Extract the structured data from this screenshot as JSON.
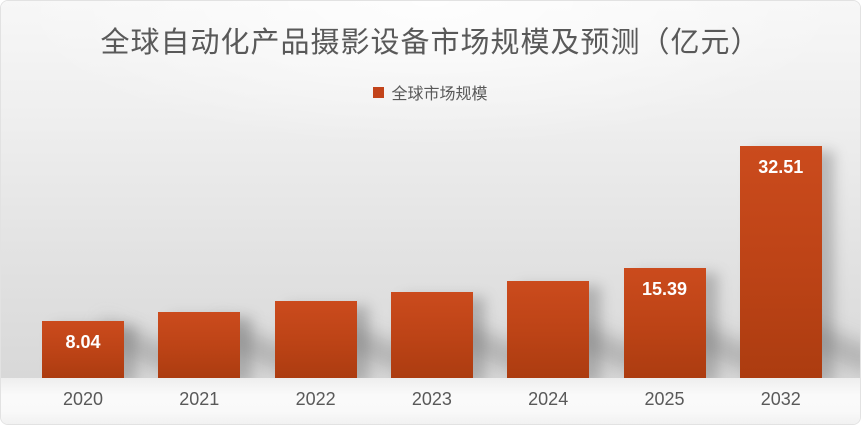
{
  "title": "全球自动化产品摄影设备市场规模及预测（亿元）",
  "legend": {
    "label": "全球市场规模",
    "marker_color": "#C2431A"
  },
  "colors": {
    "bar_top": "#CB4B1D",
    "bar_mid": "#BC4316",
    "bar_bottom": "#AC3C10",
    "text_gray": "#595959",
    "data_label": "#FFFFFF"
  },
  "chart_data": {
    "type": "bar",
    "title": "全球自动化产品摄影设备市场规模及预测（亿元）",
    "xlabel": "",
    "ylabel": "",
    "categories": [
      "2020",
      "2021",
      "2022",
      "2023",
      "2024",
      "2025",
      "2032"
    ],
    "series": [
      {
        "name": "全球市场规模",
        "values": [
          8.04,
          9.2,
          10.8,
          12.0,
          13.6,
          15.39,
          32.51
        ]
      }
    ],
    "visible_data_labels": [
      "8.04",
      "",
      "",
      "",
      "",
      "15.39",
      "32.51"
    ],
    "ylim": [
      0,
      32.51
    ],
    "grid": false,
    "axis_lines": false,
    "legend_position": "top-center",
    "unit": "亿元"
  }
}
